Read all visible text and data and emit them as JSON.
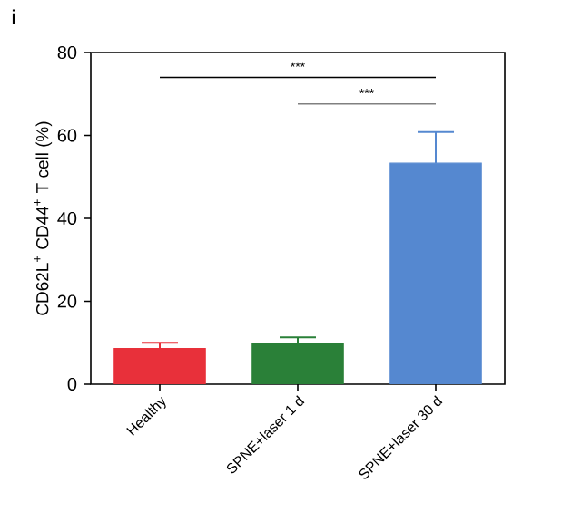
{
  "chart_data": {
    "type": "bar",
    "ylabel": "CD62L$^{+}$ CD44$^{+}$ T cell (%)",
    "categories": [
      "Healthy",
      "SPNE+laser 1 d",
      "SPNE+laser 30 d"
    ],
    "values": [
      8.6,
      9.9,
      53.3
    ],
    "errors": [
      [
        8.6,
        10.0
      ],
      [
        9.9,
        11.3
      ],
      [
        53.3,
        60.8
      ]
    ],
    "colors": [
      "#e8303a",
      "#2a8038",
      "#5588d0"
    ],
    "ylim": [
      0,
      80
    ],
    "yticks": [
      0,
      20,
      40,
      60,
      80
    ],
    "grid": false,
    "annotations": [
      "i",
      "***",
      "***"
    ]
  }
}
